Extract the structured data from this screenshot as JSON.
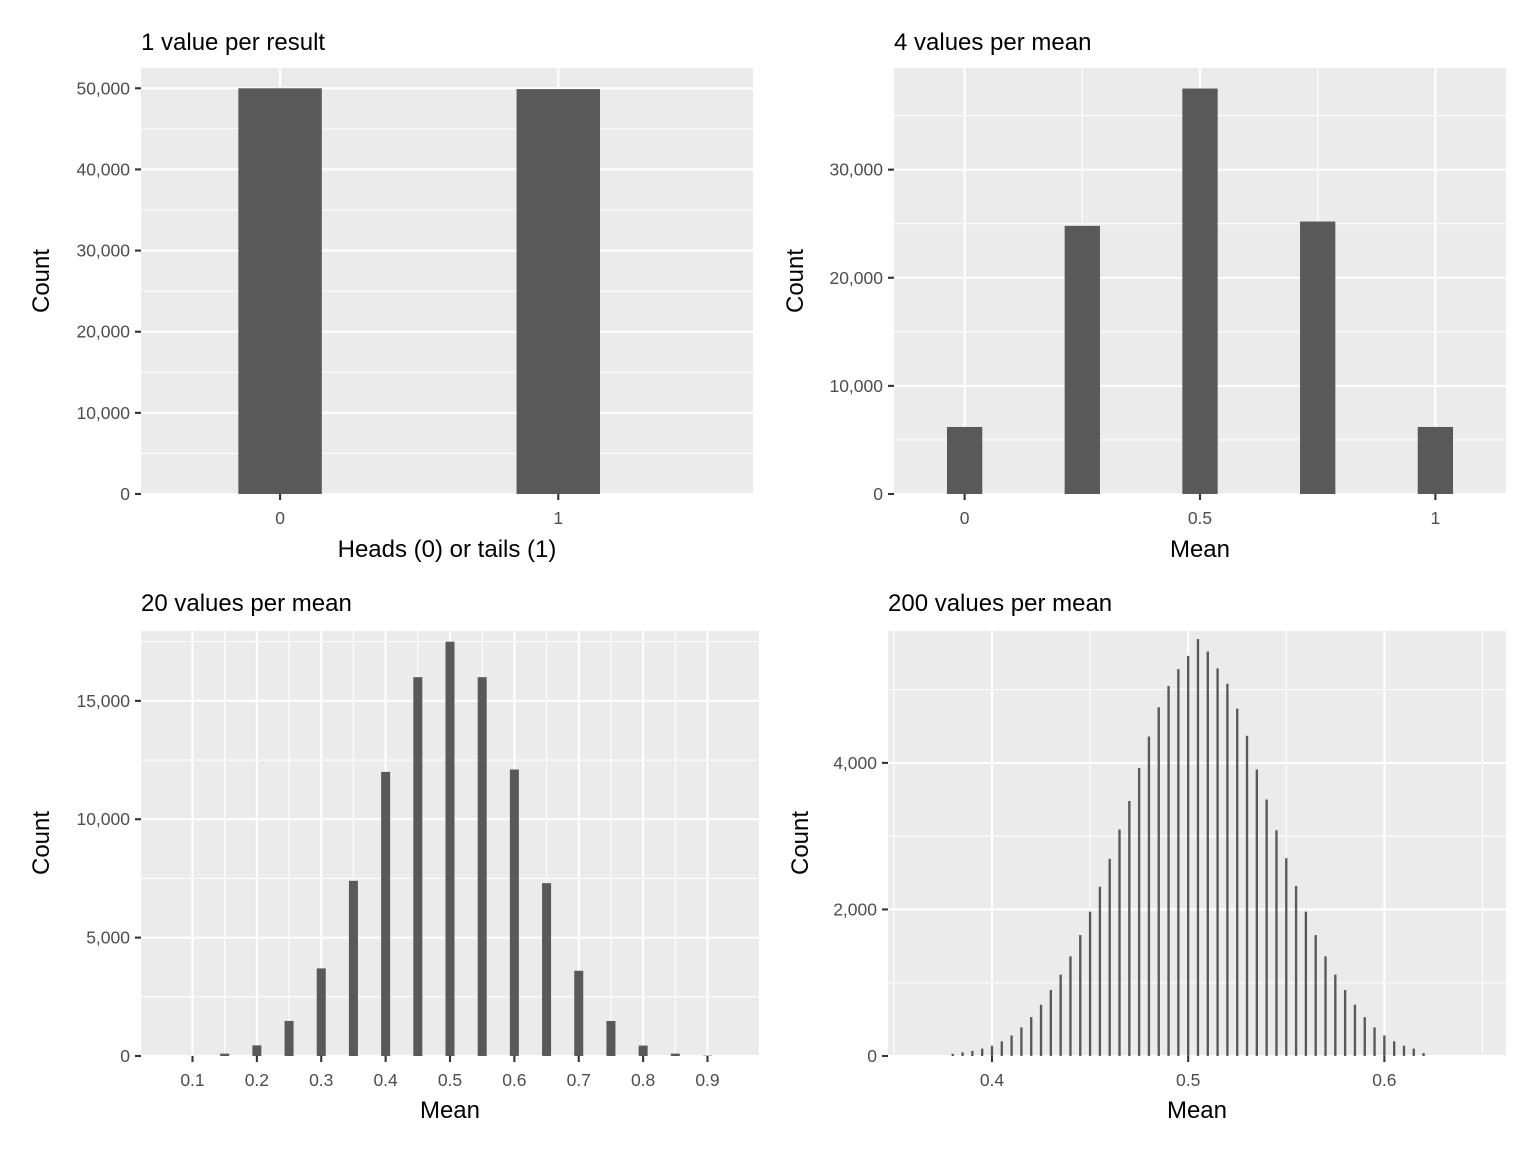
{
  "chart_data": [
    {
      "type": "bar",
      "title": "1 value per result",
      "xlabel": "Heads (0) or tails (1)",
      "ylabel": "Count",
      "x": [
        0,
        1
      ],
      "values": [
        50000,
        49900
      ],
      "bar_width": 0.3,
      "xlim": [
        -0.5,
        1.7
      ],
      "ylim": [
        0,
        52500
      ],
      "xticks": [
        0,
        1
      ],
      "xtick_labels": [
        "0",
        "1"
      ],
      "yticks": [
        0,
        10000,
        20000,
        30000,
        40000,
        50000
      ],
      "ytick_labels": [
        "0",
        "10,000",
        "20,000",
        "30,000",
        "40,000",
        "50,000"
      ],
      "yminor": [
        5000,
        15000,
        25000,
        35000,
        45000
      ],
      "xminor": [],
      "grid": true
    },
    {
      "type": "bar",
      "title": "4 values per mean",
      "xlabel": "Mean",
      "ylabel": "Count",
      "x": [
        0,
        0.25,
        0.5,
        0.75,
        1
      ],
      "values": [
        6200,
        24800,
        37500,
        25200,
        6200
      ],
      "bar_width": 0.075,
      "xlim": [
        -0.15,
        1.15
      ],
      "ylim": [
        0,
        39400
      ],
      "xticks": [
        0,
        0.5,
        1
      ],
      "xtick_labels": [
        "0",
        "0.5",
        "1"
      ],
      "yticks": [
        0,
        10000,
        20000,
        30000
      ],
      "ytick_labels": [
        "0",
        "10,000",
        "20,000",
        "30,000"
      ],
      "yminor": [
        5000,
        15000,
        25000,
        35000
      ],
      "xminor": [
        0.25,
        0.75
      ],
      "grid": true
    },
    {
      "type": "bar",
      "title": "20 values per mean",
      "xlabel": "Mean",
      "ylabel": "Count",
      "x": [
        0.1,
        0.15,
        0.2,
        0.25,
        0.3,
        0.35,
        0.4,
        0.45,
        0.5,
        0.55,
        0.6,
        0.65,
        0.7,
        0.75,
        0.8,
        0.85,
        0.9
      ],
      "values": [
        2,
        100,
        450,
        1480,
        3700,
        7400,
        12000,
        16000,
        17500,
        16000,
        12100,
        7300,
        3600,
        1480,
        440,
        100,
        15
      ],
      "bar_width": 0.014,
      "xlim": [
        0.02,
        0.98
      ],
      "ylim": [
        0,
        17950
      ],
      "xticks": [
        0.1,
        0.2,
        0.3,
        0.4,
        0.5,
        0.6,
        0.7,
        0.8,
        0.9
      ],
      "xtick_labels": [
        "0.1",
        "0.2",
        "0.3",
        "0.4",
        "0.5",
        "0.6",
        "0.7",
        "0.8",
        "0.9"
      ],
      "yticks": [
        0,
        5000,
        10000,
        15000
      ],
      "ytick_labels": [
        "0",
        "5,000",
        "10,000",
        "15,000"
      ],
      "yminor": [
        2500,
        7500,
        12500,
        17500
      ],
      "xminor": [
        0.15,
        0.25,
        0.35,
        0.45,
        0.55,
        0.65,
        0.75,
        0.85
      ],
      "grid": true
    },
    {
      "type": "bar",
      "title": "200 values per mean",
      "xlabel": "Mean",
      "ylabel": "Count",
      "x": [
        0.38,
        0.385,
        0.39,
        0.395,
        0.4,
        0.405,
        0.41,
        0.415,
        0.42,
        0.425,
        0.43,
        0.435,
        0.44,
        0.445,
        0.45,
        0.455,
        0.46,
        0.465,
        0.47,
        0.475,
        0.48,
        0.485,
        0.49,
        0.495,
        0.5,
        0.505,
        0.51,
        0.515,
        0.52,
        0.525,
        0.53,
        0.535,
        0.54,
        0.545,
        0.55,
        0.555,
        0.56,
        0.565,
        0.57,
        0.575,
        0.58,
        0.585,
        0.59,
        0.595,
        0.6,
        0.605,
        0.61,
        0.615,
        0.62
      ],
      "values": [
        30,
        50,
        70,
        100,
        140,
        200,
        280,
        390,
        530,
        700,
        900,
        1110,
        1360,
        1650,
        1970,
        2310,
        2690,
        3090,
        3480,
        3930,
        4360,
        4760,
        5050,
        5280,
        5460,
        5690,
        5520,
        5290,
        5080,
        4740,
        4370,
        3910,
        3500,
        3080,
        2700,
        2320,
        1970,
        1650,
        1360,
        1110,
        900,
        700,
        530,
        390,
        280,
        200,
        140,
        100,
        40
      ],
      "bar_width": 0.0012,
      "xlim": [
        0.347,
        0.662
      ],
      "ylim": [
        0,
        5800
      ],
      "xticks": [
        0.4,
        0.5,
        0.6
      ],
      "xtick_labels": [
        "0.4",
        "0.5",
        "0.6"
      ],
      "yticks": [
        0,
        2000,
        4000
      ],
      "ytick_labels": [
        "0",
        "2,000",
        "4,000"
      ],
      "yminor": [
        1000,
        3000,
        5000
      ],
      "xminor": [
        0.35,
        0.45,
        0.55,
        0.65
      ],
      "grid": true
    }
  ]
}
